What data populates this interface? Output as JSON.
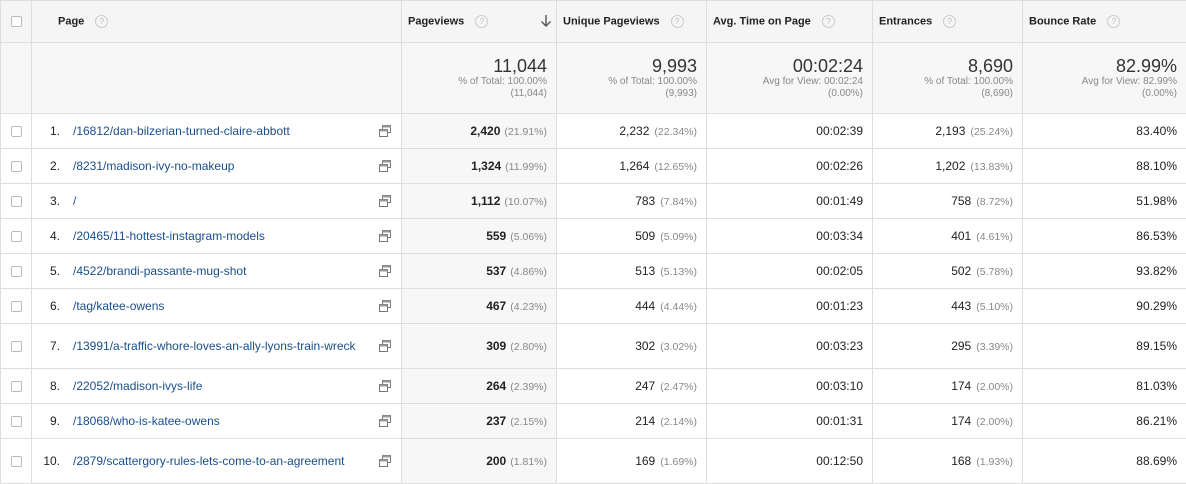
{
  "headers": {
    "page": "Page",
    "pageviews": "Pageviews",
    "unique": "Unique Pageviews",
    "avg_time": "Avg. Time on Page",
    "entrances": "Entrances",
    "bounce": "Bounce Rate",
    "help": "?"
  },
  "totals": {
    "pageviews": {
      "value": "11,044",
      "l1": "% of Total: 100.00%",
      "l2": "(11,044)"
    },
    "unique": {
      "value": "9,993",
      "l1": "% of Total: 100.00%",
      "l2": "(9,993)"
    },
    "avg_time": {
      "value": "00:02:24",
      "l1": "Avg for View: 00:02:24",
      "l2": "(0.00%)"
    },
    "entrances": {
      "value": "8,690",
      "l1": "% of Total: 100.00%",
      "l2": "(8,690)"
    },
    "bounce": {
      "value": "82.99%",
      "l1": "Avg for View: 82.99%",
      "l2": "(0.00%)"
    }
  },
  "rows": [
    {
      "num": "1.",
      "page": "/16812/dan-bilzerian-turned-claire-abbott",
      "pv": "2,420",
      "pv_pct": "(21.91%)",
      "up": "2,232",
      "up_pct": "(22.34%)",
      "time": "00:02:39",
      "ent": "2,193",
      "ent_pct": "(25.24%)",
      "bounce": "83.40%"
    },
    {
      "num": "2.",
      "page": "/8231/madison-ivy-no-makeup",
      "pv": "1,324",
      "pv_pct": "(11.99%)",
      "up": "1,264",
      "up_pct": "(12.65%)",
      "time": "00:02:26",
      "ent": "1,202",
      "ent_pct": "(13.83%)",
      "bounce": "88.10%"
    },
    {
      "num": "3.",
      "page": "/",
      "pv": "1,112",
      "pv_pct": "(10.07%)",
      "up": "783",
      "up_pct": "(7.84%)",
      "time": "00:01:49",
      "ent": "758",
      "ent_pct": "(8.72%)",
      "bounce": "51.98%"
    },
    {
      "num": "4.",
      "page": "/20465/11-hottest-instagram-models",
      "pv": "559",
      "pv_pct": "(5.06%)",
      "up": "509",
      "up_pct": "(5.09%)",
      "time": "00:03:34",
      "ent": "401",
      "ent_pct": "(4.61%)",
      "bounce": "86.53%"
    },
    {
      "num": "5.",
      "page": "/4522/brandi-passante-mug-shot",
      "pv": "537",
      "pv_pct": "(4.86%)",
      "up": "513",
      "up_pct": "(5.13%)",
      "time": "00:02:05",
      "ent": "502",
      "ent_pct": "(5.78%)",
      "bounce": "93.82%"
    },
    {
      "num": "6.",
      "page": "/tag/katee-owens",
      "pv": "467",
      "pv_pct": "(4.23%)",
      "up": "444",
      "up_pct": "(4.44%)",
      "time": "00:01:23",
      "ent": "443",
      "ent_pct": "(5.10%)",
      "bounce": "90.29%"
    },
    {
      "num": "7.",
      "page": "/13991/a-traffic-whore-loves-an-ally-lyons-train-wreck",
      "pv": "309",
      "pv_pct": "(2.80%)",
      "up": "302",
      "up_pct": "(3.02%)",
      "time": "00:03:23",
      "ent": "295",
      "ent_pct": "(3.39%)",
      "bounce": "89.15%"
    },
    {
      "num": "8.",
      "page": "/22052/madison-ivys-life",
      "pv": "264",
      "pv_pct": "(2.39%)",
      "up": "247",
      "up_pct": "(2.47%)",
      "time": "00:03:10",
      "ent": "174",
      "ent_pct": "(2.00%)",
      "bounce": "81.03%"
    },
    {
      "num": "9.",
      "page": "/18068/who-is-katee-owens",
      "pv": "237",
      "pv_pct": "(2.15%)",
      "up": "214",
      "up_pct": "(2.14%)",
      "time": "00:01:31",
      "ent": "174",
      "ent_pct": "(2.00%)",
      "bounce": "86.21%"
    },
    {
      "num": "10.",
      "page": "/2879/scattergory-rules-lets-come-to-an-agreement",
      "pv": "200",
      "pv_pct": "(1.81%)",
      "up": "169",
      "up_pct": "(1.69%)",
      "time": "00:12:50",
      "ent": "168",
      "ent_pct": "(1.93%)",
      "bounce": "88.69%"
    }
  ],
  "icons": {
    "sort": "sort-down-arrow-icon",
    "external": "open-in-new-window-icon",
    "help": "help-circle-icon"
  }
}
